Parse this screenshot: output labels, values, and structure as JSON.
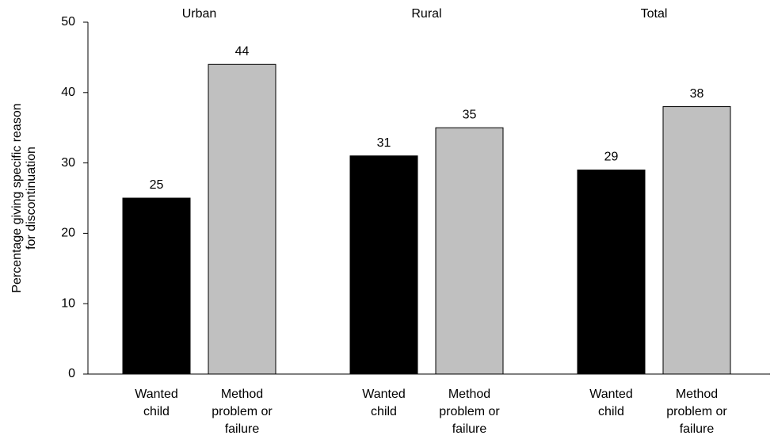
{
  "chart_data": {
    "type": "bar",
    "y_label": [
      "Percentage giving specific reason",
      "for discontinuation"
    ],
    "categories": [
      "Urban",
      "Rural",
      "Total"
    ],
    "series": [
      {
        "name": [
          "Wanted",
          "child"
        ],
        "color": "#000000",
        "values": [
          25,
          31,
          29
        ]
      },
      {
        "name": [
          "Method",
          "problem or",
          "failure"
        ],
        "color": "#c0c0c0",
        "values": [
          44,
          35,
          38
        ]
      }
    ],
    "ylim": [
      0,
      50
    ],
    "yticks": [
      0,
      10,
      20,
      30,
      40,
      50
    ]
  }
}
